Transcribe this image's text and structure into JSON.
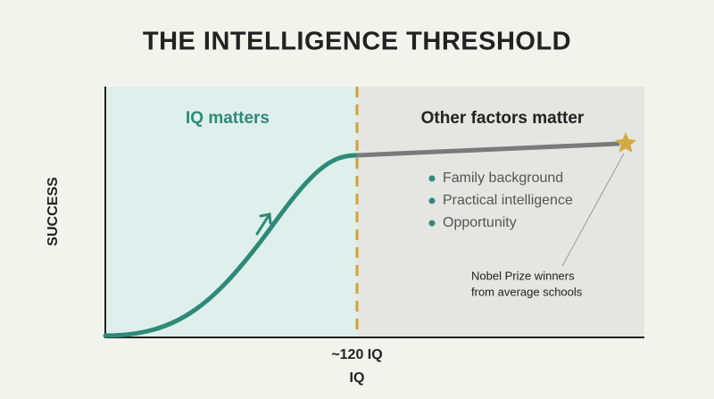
{
  "title": "THE INTELLIGENCE THRESHOLD",
  "left_region": {
    "label": "IQ matters"
  },
  "right_region": {
    "label": "Other factors matter",
    "bullets": [
      "Family background",
      "Practical intelligence",
      "Opportunity"
    ]
  },
  "annotation": {
    "lines": [
      "Nobel Prize winners",
      "from average schools"
    ]
  },
  "threshold_label": "~120 IQ",
  "x_axis_label": "IQ",
  "y_axis_label": "SUCCESS"
}
